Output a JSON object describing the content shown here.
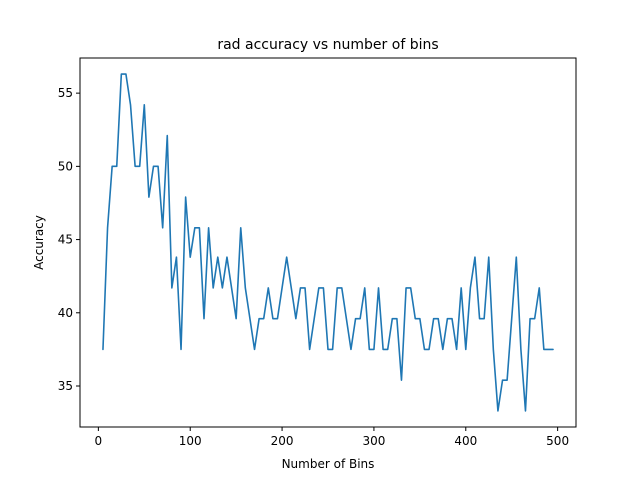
{
  "chart_data": {
    "type": "line",
    "title": "rad accuracy vs number of bins",
    "xlabel": "Number of Bins",
    "ylabel": "Accuracy",
    "xlim": [
      -20,
      520
    ],
    "ylim": [
      32.2,
      57.4
    ],
    "xticks": [
      0,
      100,
      200,
      300,
      400,
      500
    ],
    "yticks": [
      35,
      40,
      45,
      50,
      55
    ],
    "xtick_labels": [
      "0",
      "100",
      "200",
      "300",
      "400",
      "500"
    ],
    "ytick_labels": [
      "35",
      "40",
      "45",
      "50",
      "55"
    ],
    "grid": false,
    "legend": "none",
    "series": [
      {
        "color": "#1f77b4",
        "x": [
          5,
          10,
          15,
          20,
          25,
          30,
          35,
          40,
          45,
          50,
          55,
          60,
          65,
          70,
          75,
          80,
          85,
          90,
          95,
          100,
          105,
          110,
          115,
          120,
          125,
          130,
          135,
          140,
          145,
          150,
          155,
          160,
          165,
          170,
          175,
          180,
          185,
          190,
          195,
          200,
          205,
          210,
          215,
          220,
          225,
          230,
          235,
          240,
          245,
          250,
          255,
          260,
          265,
          270,
          275,
          280,
          285,
          290,
          295,
          300,
          305,
          310,
          315,
          320,
          325,
          330,
          335,
          340,
          345,
          350,
          355,
          360,
          365,
          370,
          375,
          380,
          385,
          390,
          395,
          400,
          405,
          410,
          415,
          420,
          425,
          430,
          435,
          440,
          445,
          450,
          455,
          460,
          465,
          470,
          475,
          480,
          485,
          490,
          495
        ],
        "values": [
          37.5,
          45.8,
          50.0,
          50.0,
          56.3,
          56.3,
          54.2,
          50.0,
          50.0,
          54.2,
          47.9,
          50.0,
          50.0,
          45.8,
          52.1,
          41.7,
          43.8,
          37.5,
          47.9,
          43.8,
          45.8,
          45.8,
          39.6,
          45.8,
          41.7,
          43.8,
          41.7,
          43.8,
          41.7,
          39.6,
          45.8,
          41.7,
          39.6,
          37.5,
          39.6,
          39.6,
          41.7,
          39.6,
          39.6,
          41.7,
          43.8,
          41.7,
          39.6,
          41.7,
          41.7,
          37.5,
          39.6,
          41.7,
          41.7,
          37.5,
          37.5,
          41.7,
          41.7,
          39.6,
          37.5,
          39.6,
          39.6,
          41.7,
          37.5,
          37.5,
          41.7,
          37.5,
          37.5,
          39.6,
          39.6,
          35.4,
          41.7,
          41.7,
          39.6,
          39.6,
          37.5,
          37.5,
          39.6,
          39.6,
          37.5,
          39.6,
          39.6,
          37.5,
          41.7,
          37.5,
          41.7,
          43.8,
          39.6,
          39.6,
          43.8,
          37.5,
          33.3,
          35.4,
          35.4,
          39.6,
          43.8,
          37.5,
          33.3,
          39.6,
          39.6,
          41.7,
          37.5,
          37.5,
          37.5
        ]
      }
    ]
  }
}
